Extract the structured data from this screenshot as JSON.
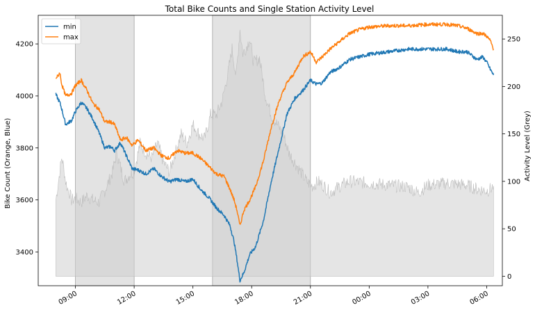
{
  "chart_data": {
    "type": "line",
    "title": "Total Bike Counts and Single Station Activity Level",
    "ylabel_left": "Bike Count (Orange, Blue)",
    "ylabel_right": "Activity Level (Grey)",
    "x_unit": "hours",
    "xlim": [
      7.1,
      30.8
    ],
    "ylim_left": [
      3270,
      4310
    ],
    "ylim_right": [
      -10,
      275
    ],
    "x_ticks": [
      {
        "x": 9,
        "label": "09:00"
      },
      {
        "x": 12,
        "label": "12:00"
      },
      {
        "x": 15,
        "label": "15:00"
      },
      {
        "x": 18,
        "label": "18:00"
      },
      {
        "x": 21,
        "label": "21:00"
      },
      {
        "x": 24,
        "label": "00:00"
      },
      {
        "x": 27,
        "label": "03:00"
      },
      {
        "x": 30,
        "label": "06:00"
      }
    ],
    "y_ticks_left": [
      3400,
      3600,
      3800,
      4000,
      4200
    ],
    "y_ticks_right": [
      0,
      50,
      100,
      150,
      200,
      250
    ],
    "shaded_periods": [
      {
        "start": 9.0,
        "end": 12.0
      },
      {
        "start": 16.0,
        "end": 21.0
      }
    ],
    "legend": {
      "placement": "top-left"
    },
    "series": [
      {
        "name": "min",
        "axis": "left",
        "color": "#1f77b4",
        "x": [
          8.0,
          8.1,
          8.2,
          8.3,
          8.5,
          8.8,
          9.0,
          9.3,
          9.6,
          9.9,
          10.2,
          10.5,
          10.8,
          11.0,
          11.3,
          11.6,
          11.9,
          12.2,
          12.6,
          13.0,
          13.4,
          13.8,
          14.2,
          14.6,
          15.0,
          15.4,
          15.8,
          16.2,
          16.6,
          16.9,
          17.1,
          17.25,
          17.4,
          17.6,
          17.9,
          18.2,
          18.6,
          19.0,
          19.4,
          19.8,
          20.2,
          20.6,
          21.0,
          21.3,
          21.6,
          22.0,
          22.5,
          23.0,
          23.5,
          24.0,
          25.0,
          26.0,
          27.0,
          28.0,
          28.5,
          29.0,
          29.5,
          29.8,
          30.0,
          30.2,
          30.35
        ],
        "values": [
          4005,
          3990,
          3975,
          3950,
          3890,
          3905,
          3940,
          3975,
          3950,
          3910,
          3860,
          3800,
          3805,
          3790,
          3820,
          3770,
          3720,
          3715,
          3700,
          3720,
          3690,
          3670,
          3680,
          3670,
          3680,
          3640,
          3610,
          3570,
          3540,
          3500,
          3440,
          3370,
          3290,
          3320,
          3390,
          3420,
          3520,
          3670,
          3800,
          3930,
          3990,
          4020,
          4060,
          4045,
          4050,
          4090,
          4110,
          4140,
          4150,
          4160,
          4170,
          4180,
          4180,
          4180,
          4170,
          4170,
          4140,
          4150,
          4130,
          4100,
          4080
        ]
      },
      {
        "name": "max",
        "axis": "left",
        "color": "#ff7f0e",
        "x": [
          8.0,
          8.1,
          8.2,
          8.3,
          8.5,
          8.8,
          9.0,
          9.3,
          9.6,
          9.9,
          10.2,
          10.5,
          10.8,
          11.0,
          11.3,
          11.6,
          11.9,
          12.2,
          12.6,
          13.0,
          13.4,
          13.8,
          14.2,
          14.6,
          15.0,
          15.4,
          15.8,
          16.2,
          16.6,
          16.9,
          17.1,
          17.25,
          17.4,
          17.6,
          17.9,
          18.2,
          18.6,
          19.0,
          19.4,
          19.8,
          20.2,
          20.6,
          21.0,
          21.3,
          21.6,
          22.0,
          22.5,
          23.0,
          23.5,
          24.0,
          25.0,
          26.0,
          27.0,
          28.0,
          28.5,
          29.0,
          29.5,
          29.8,
          30.0,
          30.2,
          30.35
        ],
        "values": [
          4070,
          4075,
          4090,
          4045,
          4000,
          4010,
          4040,
          4060,
          4020,
          3970,
          3950,
          3900,
          3900,
          3890,
          3830,
          3840,
          3810,
          3830,
          3790,
          3800,
          3770,
          3760,
          3790,
          3780,
          3780,
          3760,
          3730,
          3700,
          3690,
          3640,
          3600,
          3560,
          3500,
          3560,
          3600,
          3650,
          3750,
          3880,
          3980,
          4050,
          4090,
          4150,
          4170,
          4130,
          4150,
          4180,
          4210,
          4240,
          4255,
          4265,
          4270,
          4270,
          4275,
          4275,
          4270,
          4260,
          4240,
          4240,
          4230,
          4210,
          4180
        ]
      },
      {
        "name": "activity",
        "axis": "right",
        "color": "#bbbbbb",
        "x": [
          8.0,
          8.1,
          8.2,
          8.3,
          8.4,
          8.5,
          8.6,
          8.7,
          8.8,
          9.0,
          9.3,
          9.6,
          9.9,
          10.2,
          10.5,
          10.7,
          10.9,
          11.1,
          11.3,
          11.5,
          11.8,
          12.0,
          12.3,
          12.6,
          12.9,
          13.2,
          13.5,
          13.8,
          14.1,
          14.4,
          14.7,
          15.0,
          15.3,
          15.6,
          15.9,
          16.2,
          16.5,
          16.8,
          17.0,
          17.2,
          17.4,
          17.55,
          17.7,
          17.9,
          18.1,
          18.4,
          18.7,
          19.0,
          19.3,
          19.6,
          19.9,
          20.2,
          20.5,
          20.8,
          21.1,
          21.4,
          21.7,
          22.0,
          22.5,
          23.0,
          24.0,
          25.0,
          26.0,
          26.5,
          27.0,
          28.0,
          29.0,
          29.5,
          30.0,
          30.2,
          30.35
        ],
        "values": [
          80,
          95,
          110,
          125,
          115,
          100,
          92,
          88,
          80,
          82,
          78,
          85,
          80,
          78,
          90,
          100,
          110,
          130,
          115,
          100,
          108,
          110,
          140,
          130,
          125,
          140,
          120,
          110,
          130,
          150,
          140,
          160,
          150,
          145,
          170,
          170,
          185,
          215,
          240,
          210,
          260,
          235,
          240,
          250,
          225,
          230,
          190,
          170,
          160,
          150,
          130,
          120,
          110,
          100,
          95,
          100,
          95,
          88,
          95,
          100,
          98,
          96,
          94,
          88,
          96,
          98,
          96,
          92,
          90,
          92,
          95
        ]
      }
    ]
  }
}
